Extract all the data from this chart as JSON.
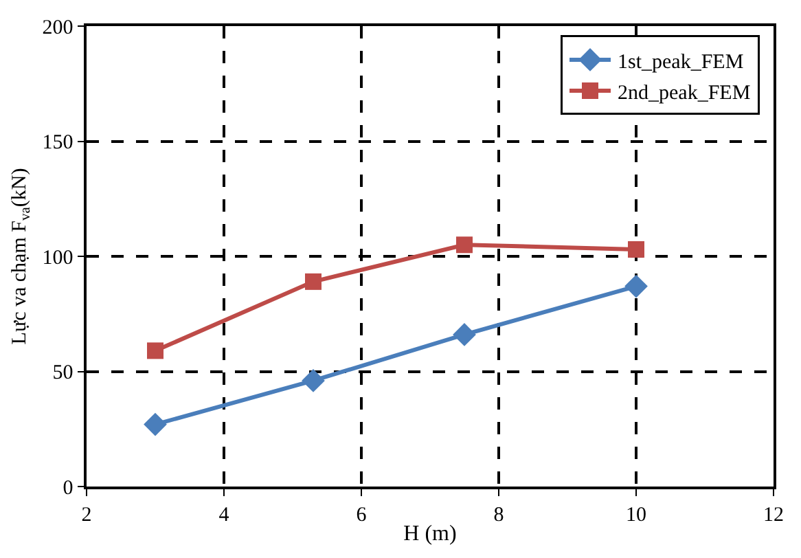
{
  "chart_data": {
    "type": "line",
    "xlabel": "H (m)",
    "ylabel": "Lực va chạm F$_{va}$(kN)",
    "xlim": [
      2,
      12
    ],
    "xticks": [
      2,
      4,
      6,
      8,
      10,
      12
    ],
    "ylim": [
      0,
      200
    ],
    "yticks": [
      0,
      50,
      100,
      150,
      200
    ],
    "grid": true,
    "legend": "top right",
    "line_style": "solid",
    "series": [
      {
        "name": "1st_peak_FEM",
        "color": "#4a7ebb",
        "marker": "diamond",
        "x": [
          3,
          5.3,
          7.5,
          10
        ],
        "values": [
          27,
          46,
          66,
          87
        ]
      },
      {
        "name": "2nd_peak_FEM",
        "color": "#be4b48",
        "marker": "square",
        "x": [
          3,
          5.3,
          7.5,
          10
        ],
        "values": [
          59,
          89,
          105,
          103
        ]
      }
    ]
  }
}
